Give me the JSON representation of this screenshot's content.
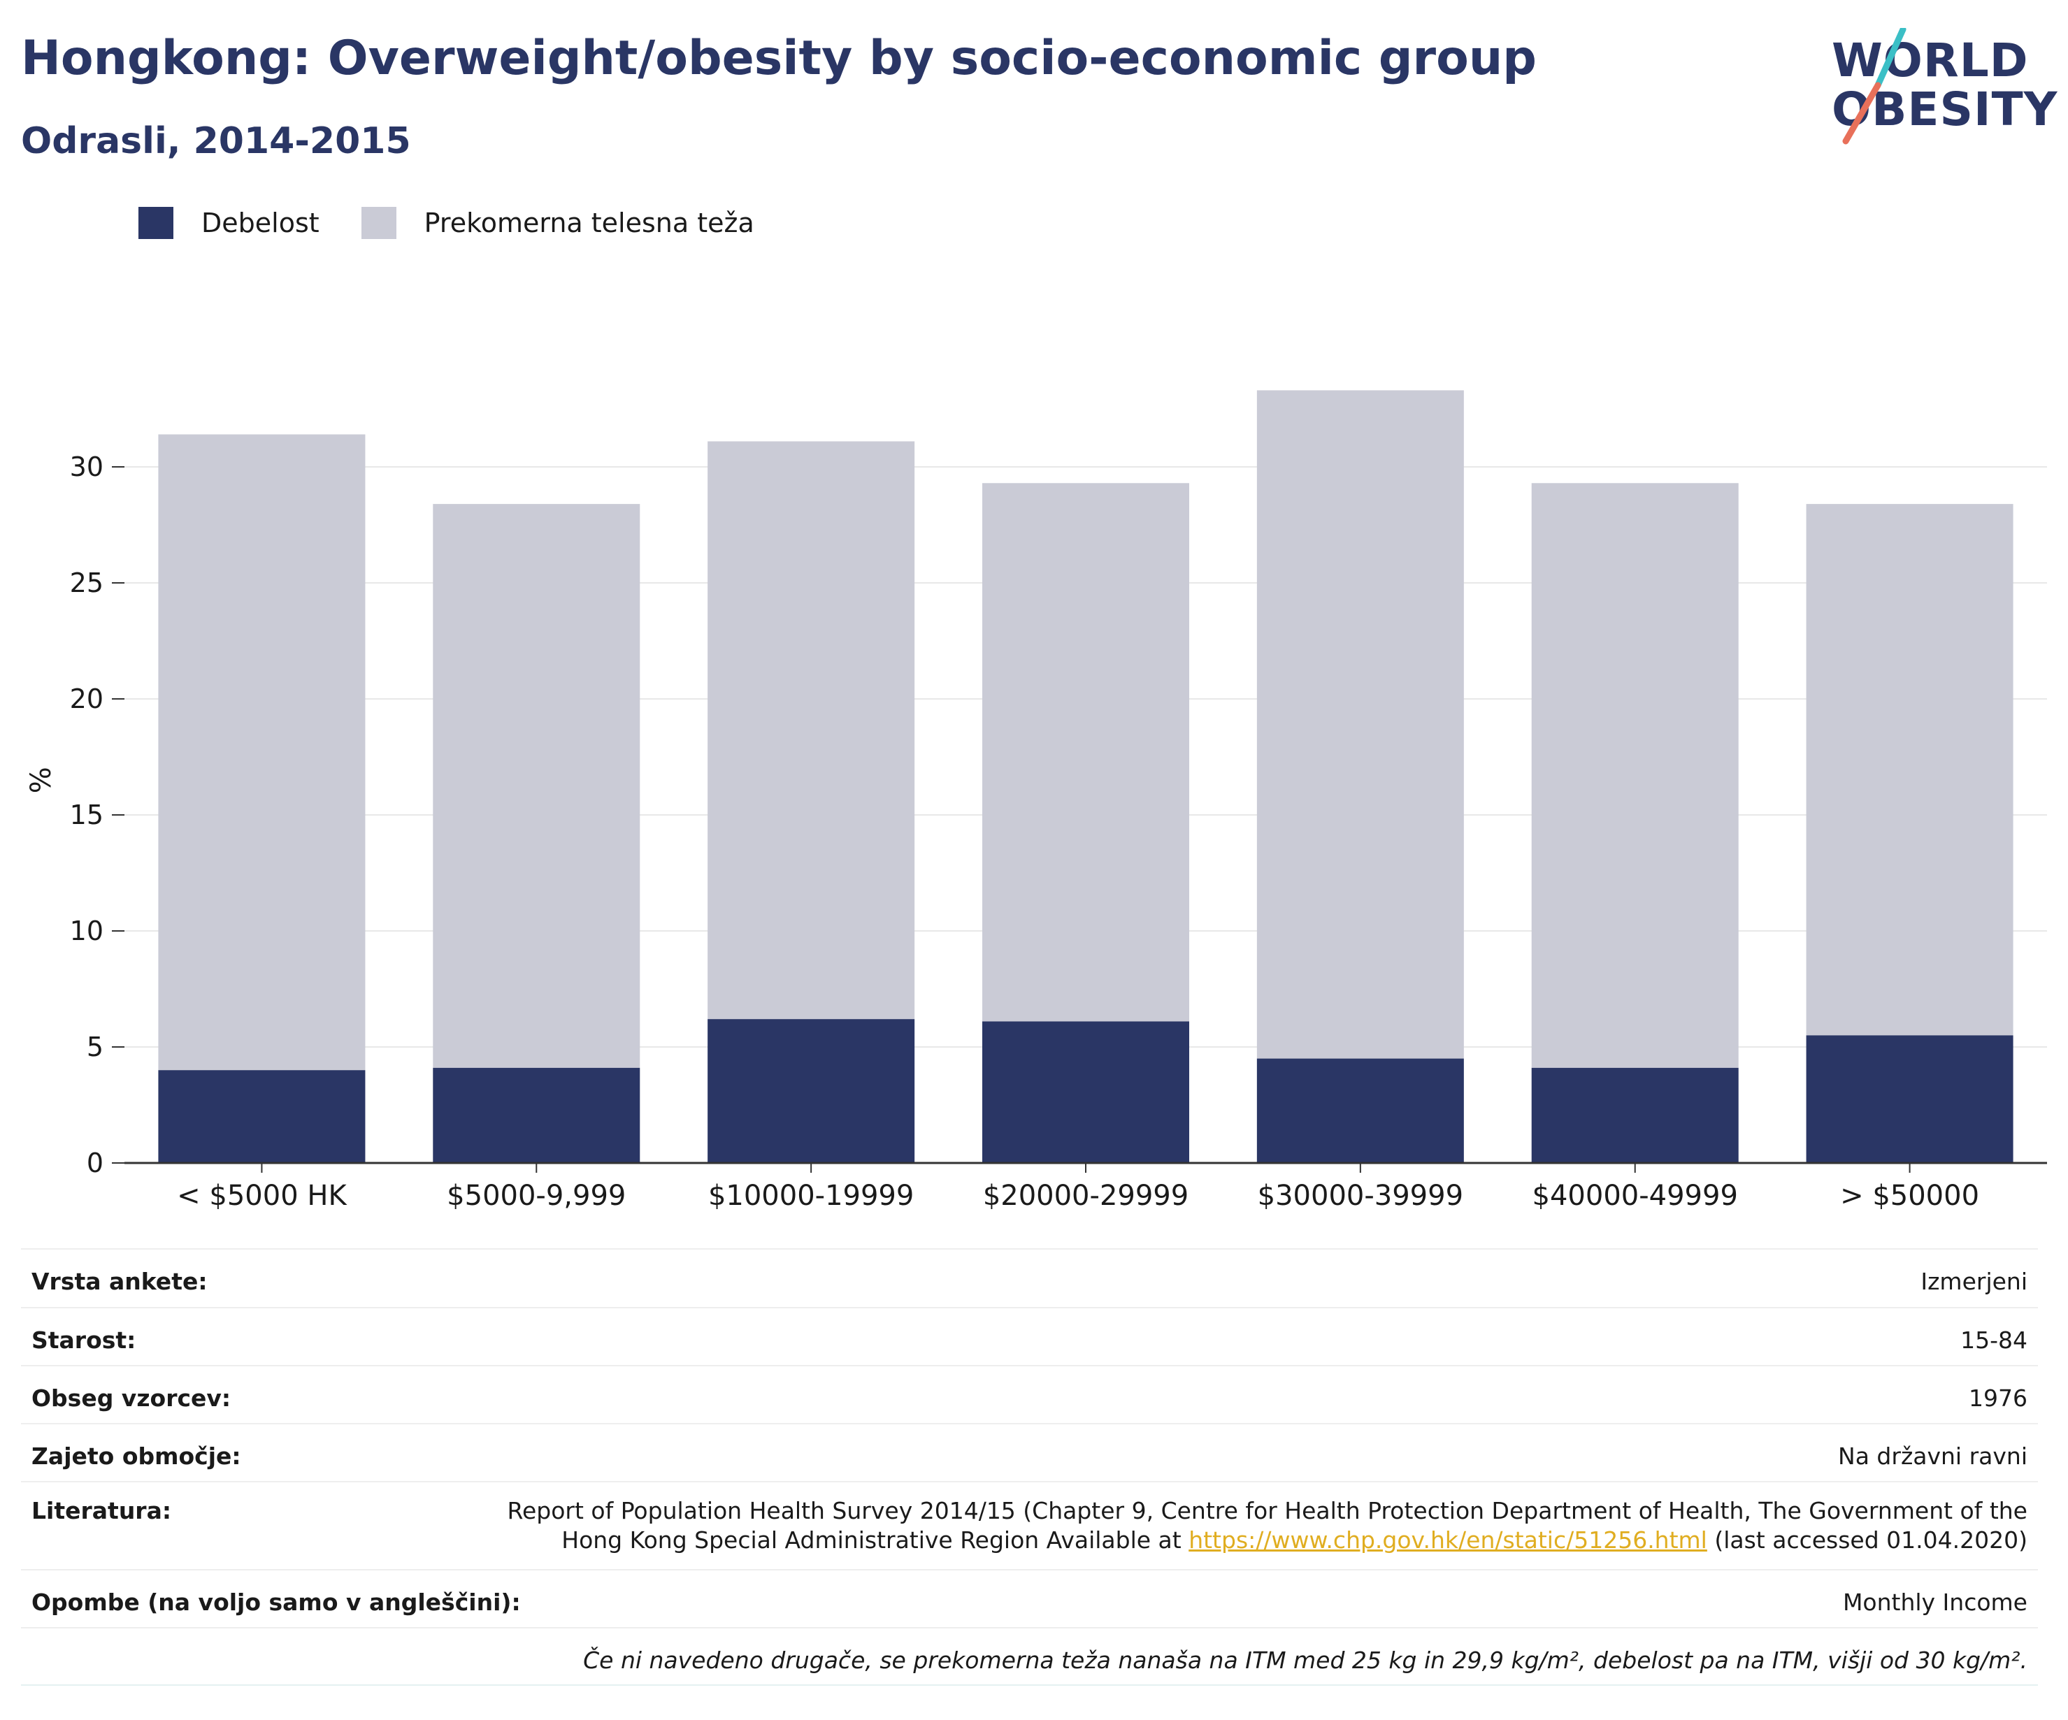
{
  "header": {
    "title": "Hongkong: Overweight/obesity by socio-economic group",
    "subtitle": "Odrasli, 2014-2015"
  },
  "logo": {
    "line1": "WORLD",
    "line2": "OBESITY",
    "accent_teal": "#3bbfc6",
    "accent_coral": "#e8705a"
  },
  "colors": {
    "obesity": "#2a3665",
    "overweight": "#cacbd6",
    "text": "#1a1a1a",
    "title": "#2a3665"
  },
  "chart_data": {
    "type": "bar",
    "stacked": true,
    "categories": [
      "< $5000 HK",
      "$5000-9,999",
      "$10000-19999",
      "$20000-29999",
      "$30000-39999",
      "$40000-49999",
      "> $50000"
    ],
    "series": [
      {
        "name": "Debelost",
        "values": [
          4.0,
          4.1,
          6.2,
          6.1,
          4.5,
          4.1,
          5.5
        ]
      },
      {
        "name": "Prekomerna telesna teža",
        "values": [
          27.4,
          24.3,
          24.9,
          23.2,
          28.8,
          25.2,
          22.9
        ]
      }
    ],
    "ylabel": "%",
    "ylim": [
      0,
      35
    ],
    "yticks": [
      0,
      5,
      10,
      15,
      20,
      25,
      30
    ],
    "grid": true,
    "legend_position": "top-left"
  },
  "info": {
    "rows": [
      {
        "label": "Vrsta ankete:",
        "value": "Izmerjeni"
      },
      {
        "label": "Starost:",
        "value": "15-84"
      },
      {
        "label": "Obseg vzorcev:",
        "value": "1976"
      },
      {
        "label": "Zajeto območje:",
        "value": "Na državni ravni"
      }
    ],
    "literature": {
      "label": "Literatura:",
      "line1": "Report of Population Health Survey 2014/15 (Chapter 9, Centre for Health Protection Department of Health, The Government of the",
      "line2_prefix": "Hong Kong Special Administrative Region Available at ",
      "link": "https://www.chp.gov.hk/en/static/51256.html",
      "line2_suffix": " (last accessed 01.04.2020)"
    },
    "notes": {
      "label": "Opombe (na voljo samo v angleščini):",
      "value": "Monthly Income"
    },
    "footnote": "Če ni navedeno drugače, se prekomerna teža nanaša na ITM med 25 kg in 29,9 kg/m², debelost pa na ITM, višji od 30 kg/m²."
  }
}
